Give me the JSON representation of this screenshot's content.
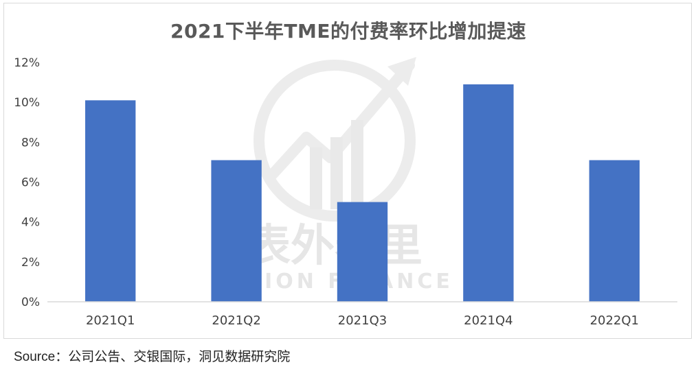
{
  "title": "2021下半年TME的付费率环比增加提速",
  "source": "Source：公司公告、交银国际，洞见数据研究院",
  "watermark": {
    "cn": "表外表里",
    "en": "VISION FINANCE"
  },
  "colors": {
    "bar": "#4472c4",
    "axis_text": "#404040",
    "axis_line": "#d9d9d9"
  },
  "chart_data": {
    "type": "bar",
    "title": "2021下半年TME的付费率环比增加提速",
    "categories": [
      "2021Q1",
      "2021Q2",
      "2021Q3",
      "2021Q4",
      "2022Q1"
    ],
    "series": [
      {
        "values": [
          10.1,
          7.1,
          5.0,
          10.9,
          7.1
        ]
      }
    ],
    "ylim": [
      0,
      12
    ],
    "yticks": [
      0,
      2,
      4,
      6,
      8,
      10,
      12
    ],
    "ytick_labels": [
      "0%",
      "2%",
      "4%",
      "6%",
      "8%",
      "10%",
      "12%"
    ],
    "xlabel": "",
    "ylabel": "",
    "grid": false,
    "legend": "none"
  }
}
